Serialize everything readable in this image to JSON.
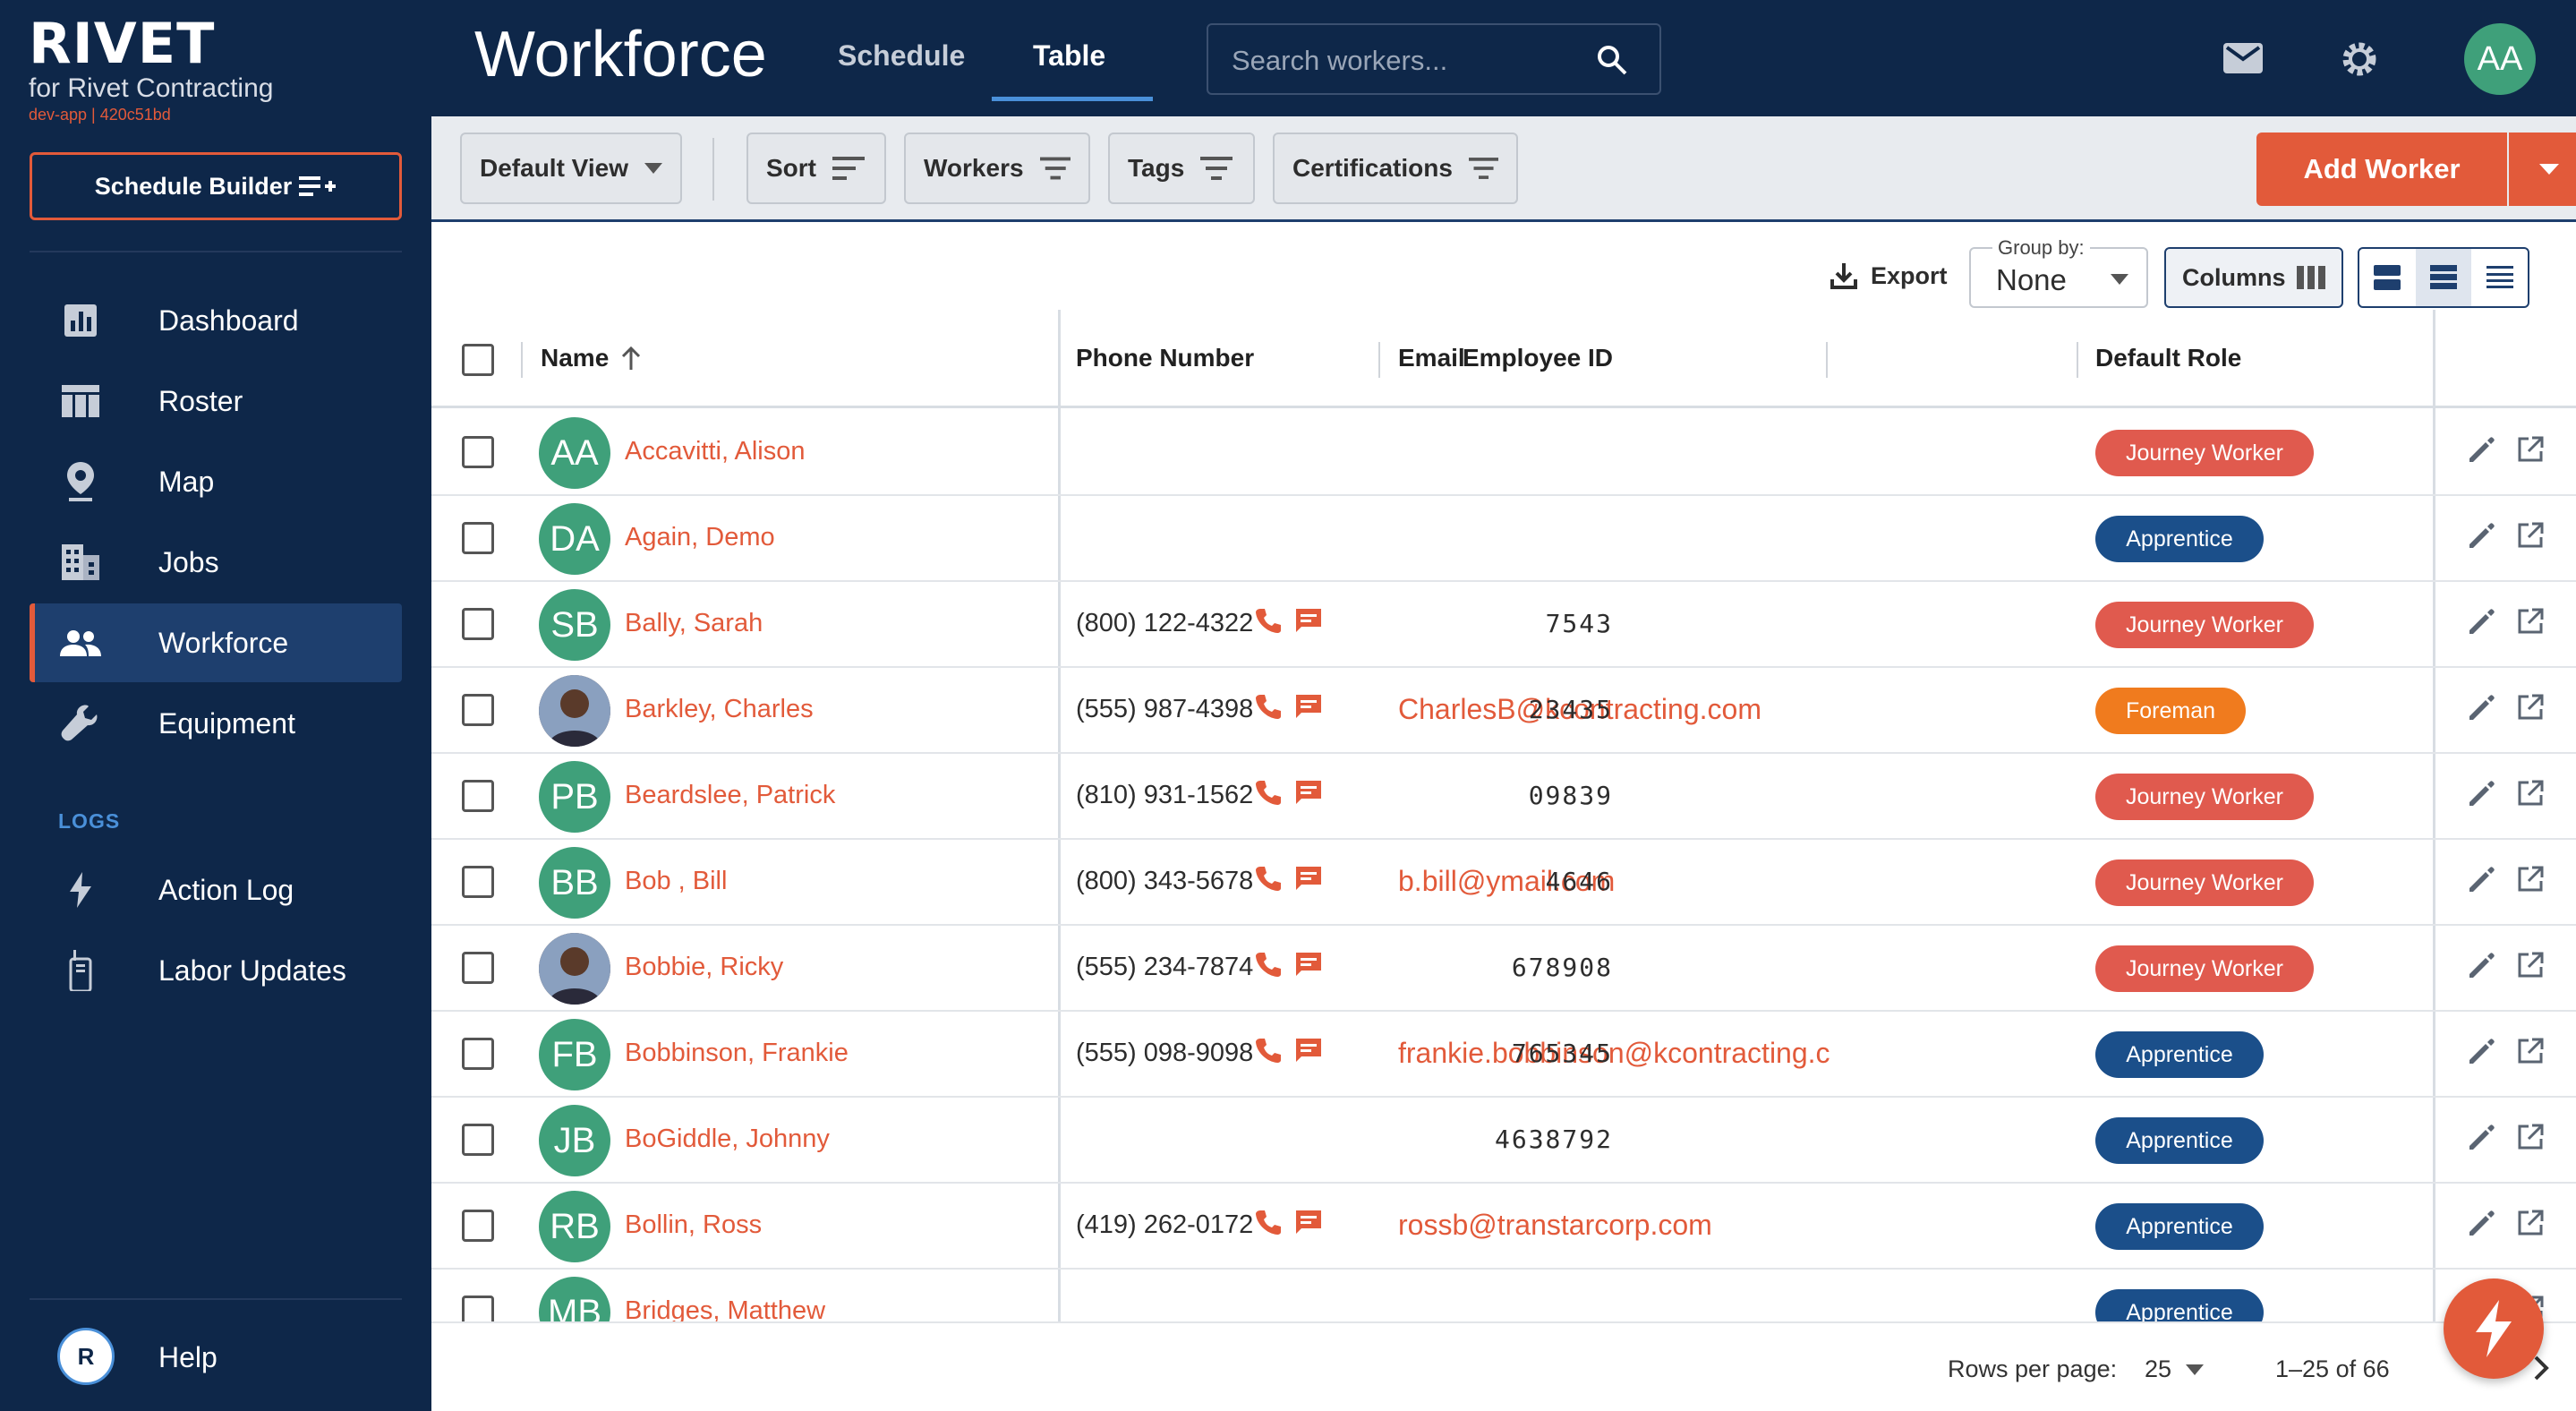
{
  "brand": {
    "name": "RIVET",
    "subtitle": "for Rivet Contracting",
    "env": "dev-app | 420c51bd"
  },
  "sidebar": {
    "builder_label": "Schedule Builder",
    "items": [
      {
        "label": "Dashboard",
        "icon": "chart-icon"
      },
      {
        "label": "Roster",
        "icon": "table-icon"
      },
      {
        "label": "Map",
        "icon": "map-pin-icon"
      },
      {
        "label": "Jobs",
        "icon": "building-icon"
      },
      {
        "label": "Workforce",
        "icon": "people-icon",
        "active": true
      },
      {
        "label": "Equipment",
        "icon": "wrench-icon"
      }
    ],
    "logs_heading": "LOGS",
    "log_items": [
      {
        "label": "Action Log",
        "icon": "bolt-icon"
      },
      {
        "label": "Labor Updates",
        "icon": "walkie-talkie-icon"
      }
    ],
    "help_label": "Help"
  },
  "header": {
    "title": "Workforce",
    "tabs": [
      {
        "label": "Schedule"
      },
      {
        "label": "Table",
        "active": true
      }
    ],
    "search_placeholder": "Search workers...",
    "user_initials": "AA"
  },
  "filters": {
    "view_label": "Default View",
    "sort_label": "Sort",
    "workers_label": "Workers",
    "tags_label": "Tags",
    "certifications_label": "Certifications",
    "add_worker_label": "Add Worker"
  },
  "table_toolbar": {
    "export_label": "Export",
    "group_by_label": "Group by:",
    "group_by_value": "None",
    "columns_label": "Columns"
  },
  "columns": {
    "name": "Name",
    "phone": "Phone Number",
    "email": "Email",
    "employee_id": "Employee ID",
    "default_role": "Default Role"
  },
  "rows": [
    {
      "initials": "AA",
      "name": "Accavitti, Alison",
      "phone": "",
      "email": "",
      "employee_id": "",
      "role": "Journey Worker",
      "role_type": "journey"
    },
    {
      "initials": "DA",
      "name": "Again, Demo",
      "phone": "",
      "email": "",
      "employee_id": "",
      "role": "Apprentice",
      "role_type": "apprentice"
    },
    {
      "initials": "SB",
      "name": "Bally, Sarah",
      "phone": "(800) 122-4322",
      "email": "",
      "employee_id": "7543",
      "role": "Journey Worker",
      "role_type": "journey"
    },
    {
      "initials": "",
      "photo": true,
      "name": "Barkley, Charles",
      "phone": "(555) 987-4398",
      "email": "CharlesB@kcontracting.com",
      "employee_id": "23435",
      "role": "Foreman",
      "role_type": "foreman"
    },
    {
      "initials": "PB",
      "name": "Beardslee, Patrick",
      "phone": "(810) 931-1562",
      "email": "",
      "employee_id": "09839",
      "role": "Journey Worker",
      "role_type": "journey"
    },
    {
      "initials": "BB",
      "name": "Bob , Bill",
      "phone": "(800) 343-5678",
      "email": "b.bill@ymail.com",
      "employee_id": "4646",
      "role": "Journey Worker",
      "role_type": "journey"
    },
    {
      "initials": "",
      "photo": true,
      "name": "Bobbie, Ricky",
      "phone": "(555) 234-7874",
      "email": "",
      "employee_id": "678908",
      "role": "Journey Worker",
      "role_type": "journey"
    },
    {
      "initials": "FB",
      "name": "Bobbinson, Frankie",
      "phone": "(555) 098-9098",
      "email": "frankie.bobbinson@kcontracting.c",
      "employee_id": "765345",
      "role": "Apprentice",
      "role_type": "apprentice"
    },
    {
      "initials": "JB",
      "name": "BoGiddle, Johnny",
      "phone": "",
      "email": "",
      "employee_id": "4638792",
      "role": "Apprentice",
      "role_type": "apprentice"
    },
    {
      "initials": "RB",
      "name": "Bollin, Ross",
      "phone": "(419) 262-0172",
      "email": "rossb@transtarcorp.com",
      "employee_id": "",
      "role": "Apprentice",
      "role_type": "apprentice"
    },
    {
      "initials": "MB",
      "name": "Bridges, Matthew",
      "phone": "",
      "email": "",
      "employee_id": "",
      "role": "Apprentice",
      "role_type": "apprentice"
    }
  ],
  "pagination": {
    "rows_per_page_label": "Rows per page:",
    "rows_per_page": "25",
    "range": "1–25 of 66"
  },
  "colors": {
    "navy": "#0e2749",
    "accent": "#e25a3a",
    "green_avatar": "#3fa07a",
    "journey": "#e05a4e",
    "apprentice": "#1b4f8a",
    "foreman": "#f07b1e"
  }
}
